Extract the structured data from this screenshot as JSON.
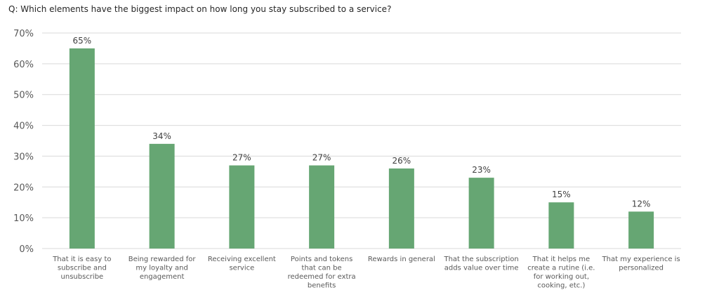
{
  "chart_data": {
    "type": "bar",
    "title": "Q: Which elements have the biggest impact on how long you stay subscribed to a service?",
    "categories": [
      [
        "That it is easy to",
        "subscribe and",
        "unsubscribe"
      ],
      [
        "Being rewarded for",
        "my loyalty and",
        "engagement"
      ],
      [
        "Receiving excellent",
        "service"
      ],
      [
        "Points and tokens",
        "that can be",
        "redeemed for extra",
        "benefits"
      ],
      [
        "Rewards in general"
      ],
      [
        "That the subscription",
        "adds value over time"
      ],
      [
        "That it helps me",
        "create a rutine (i.e.",
        "for working out,",
        "cooking, etc.)"
      ],
      [
        "That my experience is",
        "personalized"
      ]
    ],
    "values": [
      65,
      34,
      27,
      27,
      26,
      23,
      15,
      12
    ],
    "data_labels": [
      "65%",
      "34%",
      "27%",
      "27%",
      "26%",
      "23%",
      "15%",
      "12%"
    ],
    "ylim": [
      0,
      70
    ],
    "yticks": [
      "0%",
      "10%",
      "20%",
      "30%",
      "40%",
      "50%",
      "60%",
      "70%"
    ],
    "grid": true,
    "bar_color": "#66A673",
    "grid_color": "#D9D9D9"
  }
}
